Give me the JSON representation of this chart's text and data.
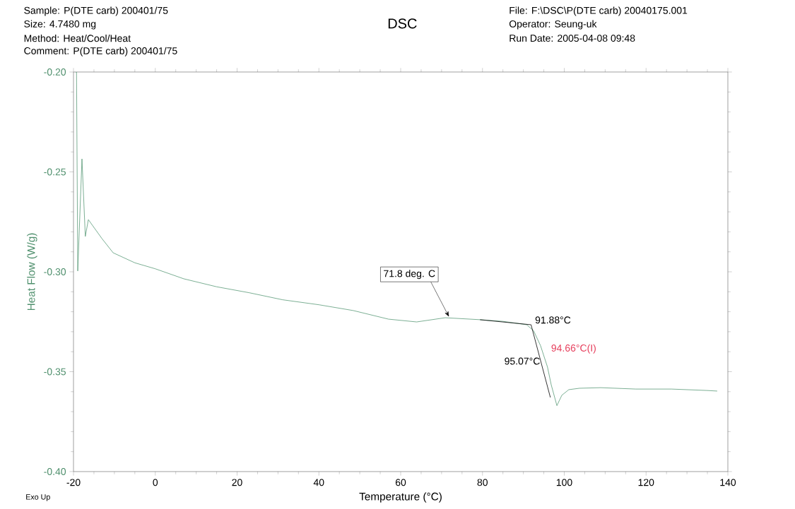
{
  "chart_data": {
    "type": "line",
    "title": "DSC",
    "xlabel": "Temperature (°C)",
    "ylabel": "Heat Flow (W/g)",
    "annotations": [
      "Sample: P(DTE carb) 200401/75",
      "Size:  4.7480 mg",
      "Method: Heat/Cool/Heat",
      "Comment: P(DTE carb) 200401/75",
      "File: F:\\DSC\\P(DTE carb) 20040175.001",
      "Operator: Seung-uk",
      "Run Date: 2005-04-08 09:48",
      "Exo Up",
      {
        "text": "71.8 deg. C",
        "x": 71.8,
        "y": -0.3225
      },
      {
        "text": "91.88°C",
        "x": 91.88,
        "y": -0.3265
      },
      {
        "text": "94.66°C(I)",
        "x": 94.66,
        "y": -0.34
      },
      {
        "text": "95.07°C",
        "x": 95.07,
        "y": -0.34
      }
    ],
    "series": [
      {
        "color": "#5a9a78",
        "x": [
          -19.5,
          -19.26,
          -18.96,
          -17.93,
          -17.11,
          -16.37,
          -13.0,
          -10.3,
          -5.0,
          0.0,
          6.95,
          15.0,
          23.0,
          31.1,
          40.0,
          48.4,
          57.0,
          63.9,
          70.9,
          79.5,
          85.0,
          90.8,
          92.5,
          94.2,
          95.9,
          96.8,
          98.2,
          99.4,
          101.1,
          103.7,
          108.9,
          117.5,
          126.2,
          134.8,
          137.4
        ],
        "values": [
          -0.2,
          -0.2,
          -0.2996,
          -0.2435,
          -0.2823,
          -0.2739,
          -0.2835,
          -0.2905,
          -0.2955,
          -0.2985,
          -0.3035,
          -0.3075,
          -0.3105,
          -0.314,
          -0.3165,
          -0.3194,
          -0.3237,
          -0.3251,
          -0.323,
          -0.324,
          -0.3248,
          -0.3265,
          -0.3295,
          -0.337,
          -0.3477,
          -0.3565,
          -0.367,
          -0.3618,
          -0.359,
          -0.3583,
          -0.358,
          -0.3587,
          -0.3587,
          -0.3594,
          -0.3597
        ]
      },
      {
        "color": "#000000",
        "x": [
          79.4,
          91.88
        ],
        "values": [
          -0.324,
          -0.3265
        ]
      },
      {
        "color": "#000000",
        "x": [
          91.88,
          96.6
        ],
        "values": [
          -0.3265,
          -0.3629
        ]
      }
    ],
    "xlim": [
      -20,
      140
    ],
    "xticks": [
      -20,
      0,
      20,
      40,
      60,
      80,
      100,
      120,
      140
    ],
    "ylim": [
      -0.4,
      -0.2
    ],
    "yticks": [
      {
        "value": -0.4,
        "label": "-0.40"
      },
      {
        "value": -0.35,
        "label": "-0.35"
      },
      {
        "value": -0.3,
        "label": "-0.30"
      },
      {
        "value": -0.25,
        "label": "-0.25"
      },
      {
        "value": -0.2,
        "label": "-0.20"
      }
    ],
    "grid": false
  }
}
